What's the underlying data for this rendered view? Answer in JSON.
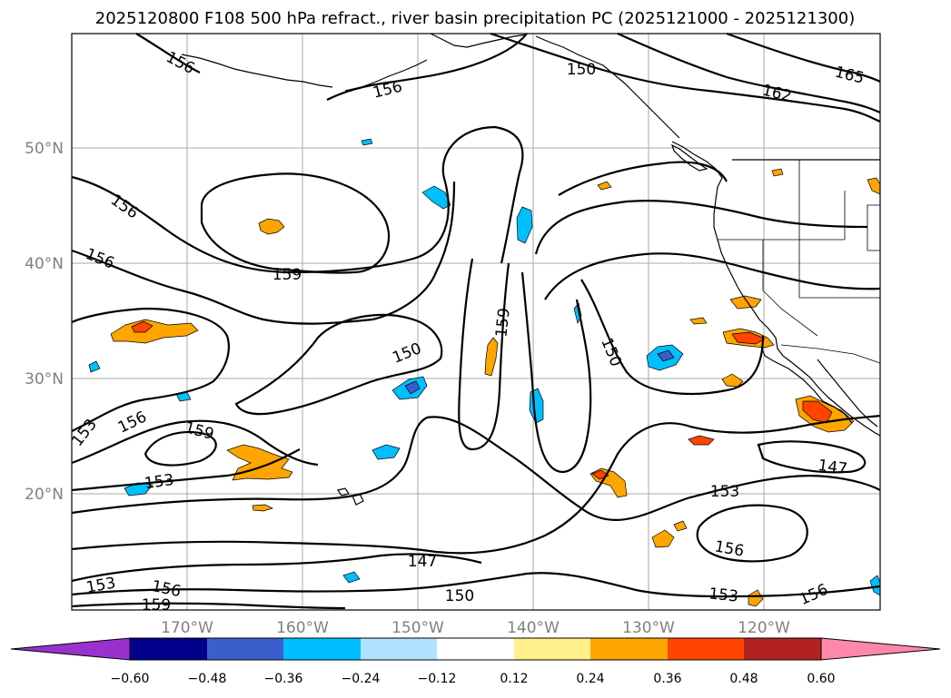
{
  "title": "2025120800 F108 500 hPa refract., river basin precipitation PC (2025121000 - 2025121300)",
  "lat_labels": [
    "50°N",
    "40°N",
    "30°N",
    "20°N"
  ],
  "lon_labels": [
    "170°W",
    "160°W",
    "150°W",
    "140°W",
    "130°W",
    "120°W"
  ],
  "colorbar": {
    "ticks": [
      "−0.60",
      "−0.48",
      "−0.36",
      "−0.24",
      "−0.12",
      "0.12",
      "0.24",
      "0.36",
      "0.48",
      "0.60"
    ],
    "colors": [
      "#9932cc",
      "#00008b",
      "#3a5fcd",
      "#00bfff",
      "#b0e2ff",
      "#ffffff",
      "#fff08c",
      "#ffa500",
      "#ff4500",
      "#b22222",
      "#ff88aa",
      "#ff88aa"
    ]
  },
  "contour_labels": [
    "156",
    "156",
    "156",
    "156",
    "159",
    "150",
    "159",
    "150",
    "153",
    "156",
    "159",
    "153",
    "147",
    "153",
    "156",
    "153",
    "156",
    "159",
    "150",
    "153",
    "156",
    "147",
    "150",
    "162",
    "165"
  ]
}
